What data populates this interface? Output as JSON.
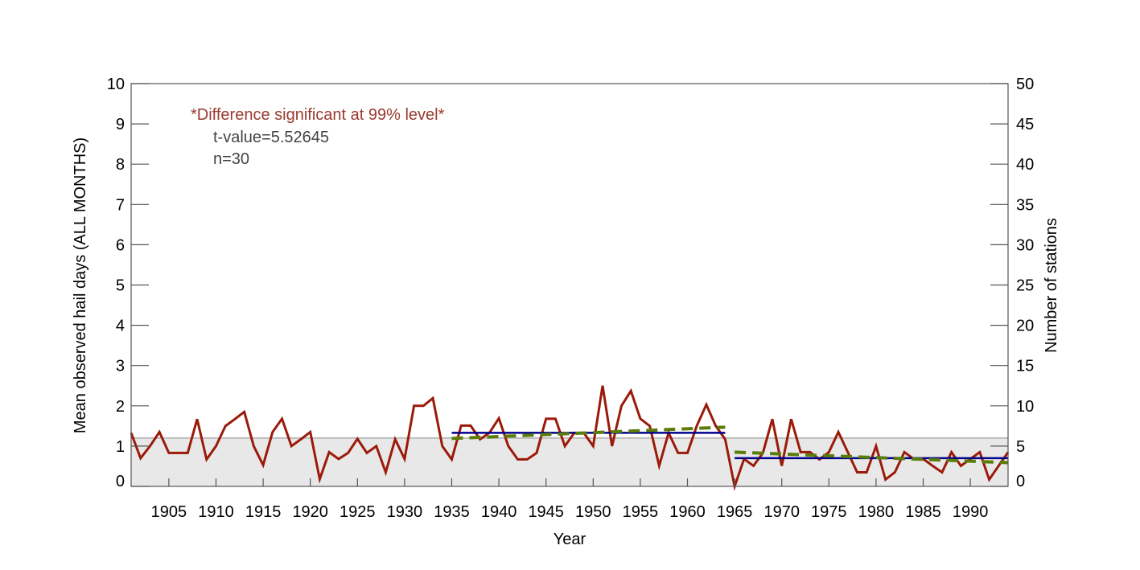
{
  "chart_data": {
    "type": "line",
    "xlabel": "Year",
    "ylabel": "Mean observed hail days (ALL MONTHS)",
    "y2label": "Number of stations",
    "xlim": [
      1901,
      1994
    ],
    "ylim": [
      0,
      10
    ],
    "y2lim": [
      0,
      50
    ],
    "x_ticks": [
      1905,
      1910,
      1915,
      1920,
      1925,
      1930,
      1935,
      1940,
      1945,
      1950,
      1955,
      1960,
      1965,
      1970,
      1975,
      1980,
      1985,
      1990
    ],
    "y_ticks": [
      0,
      1,
      2,
      3,
      4,
      5,
      6,
      7,
      8,
      9,
      10
    ],
    "y2_ticks": [
      0,
      5,
      10,
      15,
      20,
      25,
      30,
      35,
      40,
      45,
      50
    ],
    "annotations": {
      "significance": "*Difference significant at 99% level*",
      "tvalue": "t-value=5.52645",
      "n": "n=30"
    },
    "colors": {
      "series": "#9b1a0a",
      "mean": "#00008b",
      "trend": "#5a7d0a",
      "stations_fill": "#e8e8e8",
      "stations_edge": "#bdbdbd",
      "annotation": "#9b3a2e"
    },
    "stations": {
      "name": "Number of stations",
      "value": 6
    },
    "series": [
      {
        "name": "Mean observed hail days",
        "x": [
          1901,
          1902,
          1903,
          1904,
          1905,
          1906,
          1907,
          1908,
          1909,
          1910,
          1911,
          1912,
          1913,
          1914,
          1915,
          1916,
          1917,
          1918,
          1919,
          1920,
          1921,
          1922,
          1923,
          1924,
          1925,
          1926,
          1927,
          1928,
          1929,
          1930,
          1931,
          1932,
          1933,
          1934,
          1935,
          1936,
          1937,
          1938,
          1939,
          1940,
          1941,
          1942,
          1943,
          1944,
          1945,
          1946,
          1947,
          1948,
          1949,
          1950,
          1951,
          1952,
          1953,
          1954,
          1955,
          1956,
          1957,
          1958,
          1959,
          1960,
          1961,
          1962,
          1963,
          1964,
          1965,
          1966,
          1967,
          1968,
          1969,
          1970,
          1971,
          1972,
          1973,
          1974,
          1975,
          1976,
          1977,
          1978,
          1979,
          1980,
          1981,
          1982,
          1983,
          1984,
          1985,
          1986,
          1987,
          1988,
          1989,
          1990,
          1991,
          1992,
          1993,
          1994
        ],
        "values": [
          1.33,
          0.7,
          1.0,
          1.35,
          0.83,
          0.83,
          0.83,
          1.67,
          0.67,
          1.0,
          1.5,
          1.67,
          1.85,
          1.0,
          0.53,
          1.35,
          1.68,
          1.0,
          1.17,
          1.35,
          0.18,
          0.85,
          0.68,
          0.83,
          1.18,
          0.83,
          1.0,
          0.35,
          1.17,
          0.68,
          2.0,
          2.0,
          2.19,
          1.0,
          0.67,
          1.51,
          1.51,
          1.17,
          1.33,
          1.69,
          1.0,
          0.67,
          0.67,
          0.83,
          1.68,
          1.68,
          1.0,
          1.33,
          1.33,
          1.0,
          2.5,
          1.0,
          2.0,
          2.37,
          1.68,
          1.5,
          0.51,
          1.33,
          0.83,
          0.83,
          1.51,
          2.03,
          1.5,
          1.17,
          0.0,
          0.68,
          0.51,
          0.83,
          1.67,
          0.51,
          1.67,
          0.85,
          0.85,
          0.67,
          0.85,
          1.35,
          0.85,
          0.35,
          0.35,
          1.0,
          0.17,
          0.35,
          0.85,
          0.68,
          0.68,
          0.51,
          0.35,
          0.85,
          0.51,
          0.68,
          0.85,
          0.17,
          0.51,
          0.85
        ]
      }
    ],
    "means": [
      {
        "name": "Mean 1935-1964",
        "x": [
          1935,
          1964
        ],
        "value": 1.33
      },
      {
        "name": "Mean 1965-1994",
        "x": [
          1965,
          1994
        ],
        "value": 0.7
      }
    ],
    "trends": [
      {
        "name": "Trend 1935-1964",
        "x": [
          1935,
          1964
        ],
        "y": [
          1.19,
          1.47
        ]
      },
      {
        "name": "Trend 1965-1994",
        "x": [
          1965,
          1994
        ],
        "y": [
          0.85,
          0.59
        ]
      }
    ]
  }
}
